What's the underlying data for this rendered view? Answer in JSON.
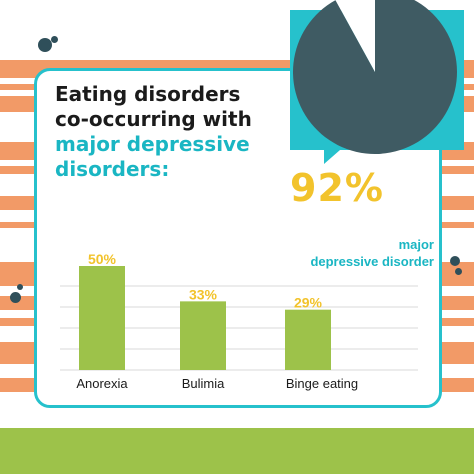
{
  "title": {
    "line1": "Eating disorders",
    "line2": "co-occurring with",
    "line3": "major depressive",
    "line4": "disorders:"
  },
  "highlight": {
    "value": "92%",
    "percent": 92,
    "label_line1": "major",
    "label_line2": "depressive disorder"
  },
  "colors": {
    "bar": "#9dc24a",
    "value_label": "#f2c32c",
    "accent": "#1ab6c3",
    "frame": "#26c1cc",
    "pie": "#3f5b63",
    "stripe_orange": "#f29a67",
    "stripe_green": "#9dc24a"
  },
  "chart_data": {
    "type": "bar",
    "categories": [
      "Anorexia",
      "Bulimia",
      "Binge eating"
    ],
    "values": [
      50,
      33,
      29
    ],
    "value_labels": [
      "50%",
      "33%",
      "29%"
    ],
    "ylim": [
      0,
      50
    ],
    "grid": true
  }
}
